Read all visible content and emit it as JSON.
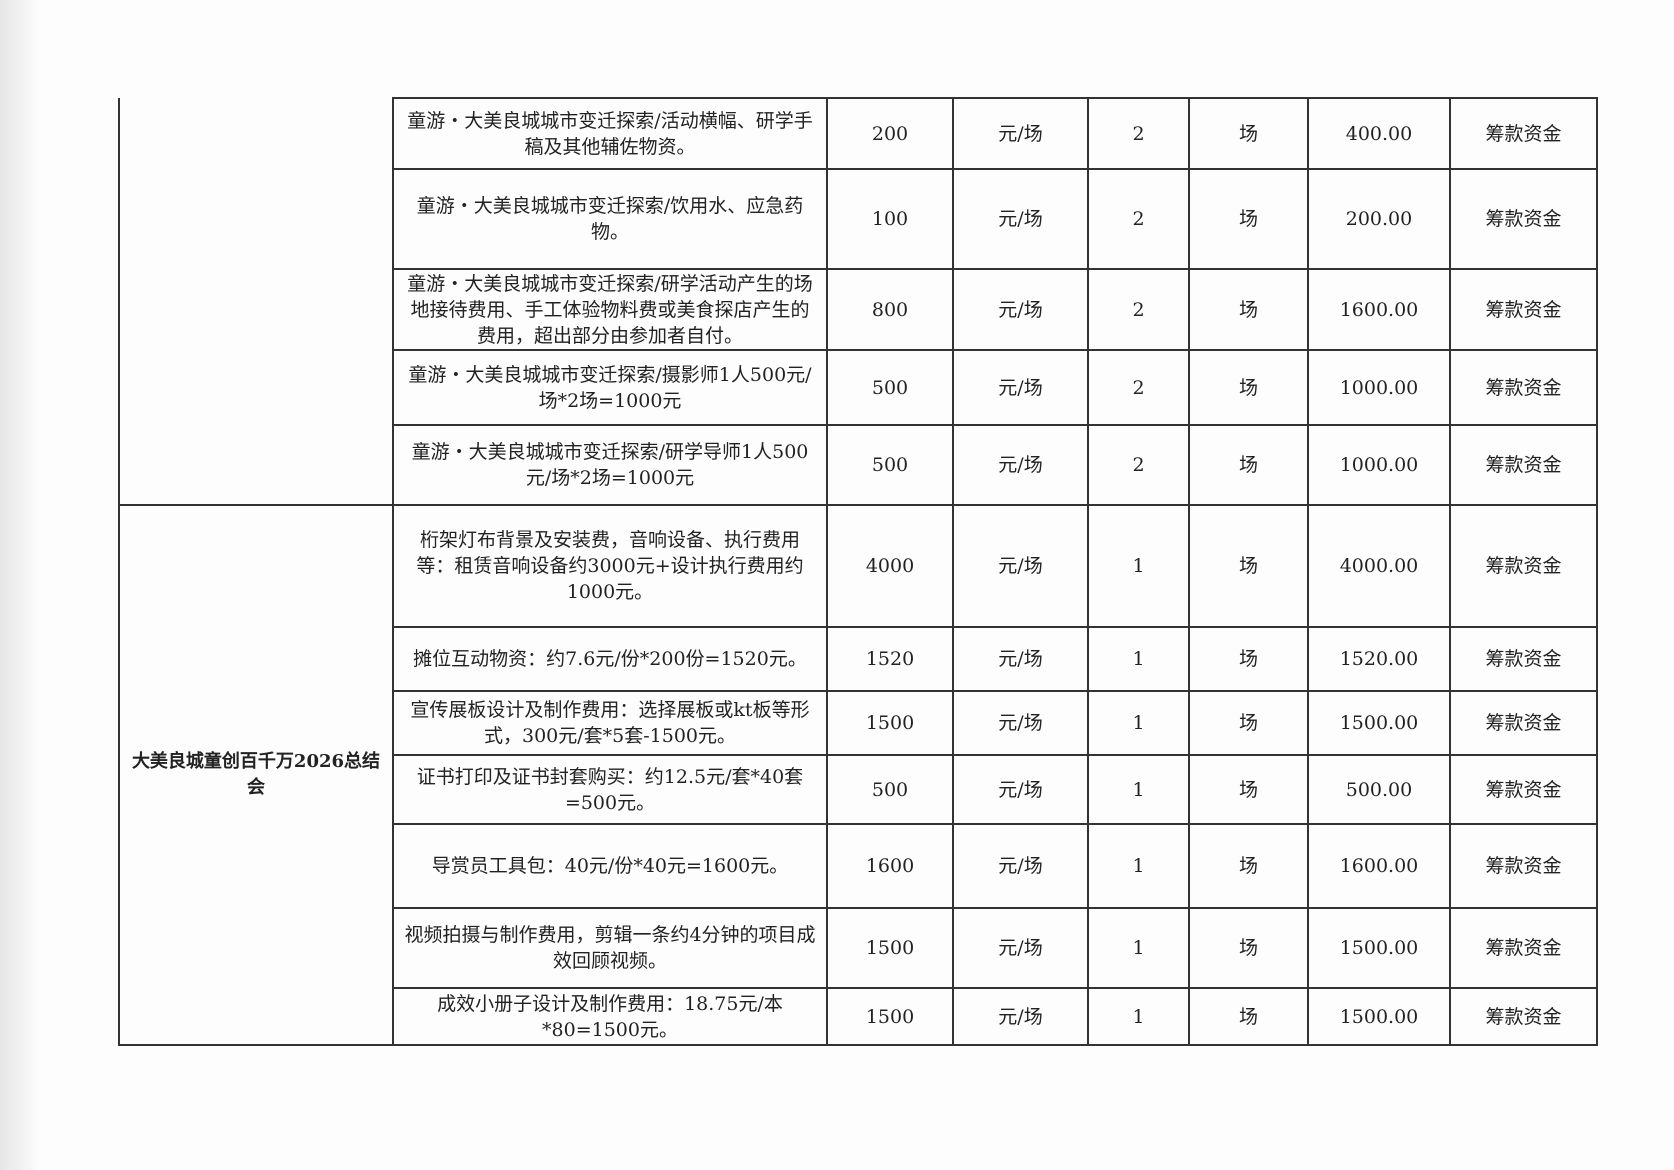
{
  "groups": [
    {
      "name": "",
      "rows": [
        {
          "desc": "童游・大美良城城市变迁探索/活动横幅、研学手稿及其他辅佐物资。",
          "price": "200",
          "unit": "元/场",
          "qty": "2",
          "qty_unit": "场",
          "amount": "400.00",
          "source": "筹款资金"
        },
        {
          "desc": "童游・大美良城城市变迁探索/饮用水、应急药物。",
          "price": "100",
          "unit": "元/场",
          "qty": "2",
          "qty_unit": "场",
          "amount": "200.00",
          "source": "筹款资金"
        },
        {
          "desc": "童游・大美良城城市变迁探索/研学活动产生的场地接待费用、手工体验物料费或美食探店产生的费用，超出部分由参加者自付。",
          "price": "800",
          "unit": "元/场",
          "qty": "2",
          "qty_unit": "场",
          "amount": "1600.00",
          "source": "筹款资金"
        },
        {
          "desc": "童游・大美良城城市变迁探索/摄影师1人500元/场*2场=1000元",
          "price": "500",
          "unit": "元/场",
          "qty": "2",
          "qty_unit": "场",
          "amount": "1000.00",
          "source": "筹款资金"
        },
        {
          "desc": "童游・大美良城城市变迁探索/研学导师1人500元/场*2场=1000元",
          "price": "500",
          "unit": "元/场",
          "qty": "2",
          "qty_unit": "场",
          "amount": "1000.00",
          "source": "筹款资金"
        }
      ]
    },
    {
      "name": "大美良城童创百千万2026总结会",
      "rows": [
        {
          "desc": "桁架灯布背景及安装费，音响设备、执行费用等：租赁音响设备约3000元+设计执行费用约1000元。",
          "price": "4000",
          "unit": "元/场",
          "qty": "1",
          "qty_unit": "场",
          "amount": "4000.00",
          "source": "筹款资金"
        },
        {
          "desc": "摊位互动物资：约7.6元/份*200份=1520元。",
          "price": "1520",
          "unit": "元/场",
          "qty": "1",
          "qty_unit": "场",
          "amount": "1520.00",
          "source": "筹款资金"
        },
        {
          "desc": "宣传展板设计及制作费用：选择展板或kt板等形式，300元/套*5套-1500元。",
          "price": "1500",
          "unit": "元/场",
          "qty": "1",
          "qty_unit": "场",
          "amount": "1500.00",
          "source": "筹款资金"
        },
        {
          "desc": "证书打印及证书封套购买：约12.5元/套*40套=500元。",
          "price": "500",
          "unit": "元/场",
          "qty": "1",
          "qty_unit": "场",
          "amount": "500.00",
          "source": "筹款资金"
        },
        {
          "desc": "导赏员工具包：40元/份*40元=1600元。",
          "price": "1600",
          "unit": "元/场",
          "qty": "1",
          "qty_unit": "场",
          "amount": "1600.00",
          "source": "筹款资金"
        },
        {
          "desc": "视频拍摄与制作费用，剪辑一条约4分钟的项目成效回顾视频。",
          "price": "1500",
          "unit": "元/场",
          "qty": "1",
          "qty_unit": "场",
          "amount": "1500.00",
          "source": "筹款资金"
        },
        {
          "desc": "成效小册子设计及制作费用：18.75元/本*80=1500元。",
          "price": "1500",
          "unit": "元/场",
          "qty": "1",
          "qty_unit": "场",
          "amount": "1500.00",
          "source": "筹款资金"
        }
      ]
    }
  ]
}
